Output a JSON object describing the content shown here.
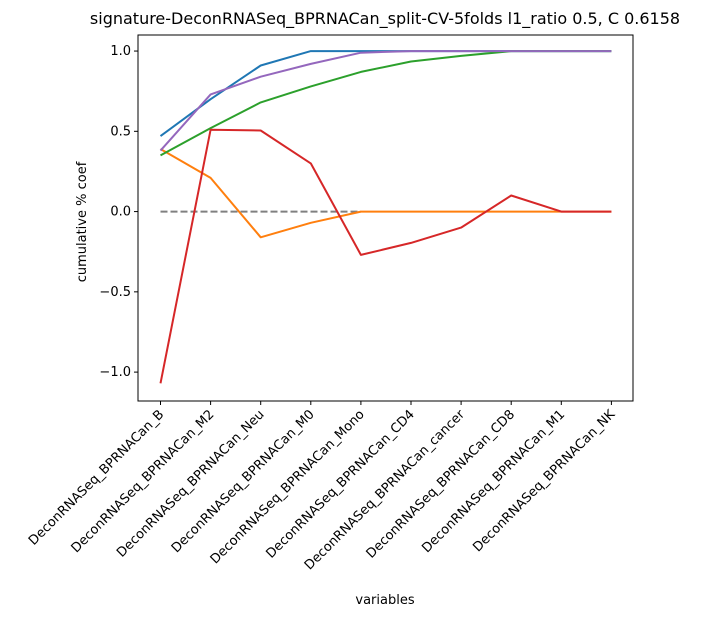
{
  "chart_data": {
    "type": "line",
    "title": "signature-DeconRNASeq_BPRNACan_split-CV-5folds l1_ratio 0.5, C 0.6158",
    "xlabel": "variables",
    "ylabel": "cumulative % coef",
    "ylim": [
      -1.18,
      1.1
    ],
    "yticks": [
      {
        "value": 1.0,
        "label": "1.0"
      },
      {
        "value": 0.5,
        "label": "0.5"
      },
      {
        "value": 0.0,
        "label": "0.0"
      },
      {
        "value": -0.5,
        "label": "−0.5"
      },
      {
        "value": -1.0,
        "label": "−1.0"
      }
    ],
    "categories": [
      "DeconRNASeq_BPRNACan_B",
      "DeconRNASeq_BPRNACan_M2",
      "DeconRNASeq_BPRNACan_Neu",
      "DeconRNASeq_BPRNACan_M0",
      "DeconRNASeq_BPRNACan_Mono",
      "DeconRNASeq_BPRNACan_CD4",
      "DeconRNASeq_BPRNACan_cancer",
      "DeconRNASeq_BPRNACan_CD8",
      "DeconRNASeq_BPRNACan_M1",
      "DeconRNASeq_BPRNACan_NK"
    ],
    "series": [
      {
        "color": "#1f77b4",
        "values": [
          0.47,
          0.7,
          0.91,
          1.0,
          1.0,
          1.0,
          1.0,
          1.0,
          1.0,
          1.0
        ]
      },
      {
        "color": "#ff7f0e",
        "values": [
          0.39,
          0.21,
          -0.16,
          -0.07,
          0.0,
          0.0,
          0.0,
          0.0,
          0.0,
          0.0
        ]
      },
      {
        "color": "#2ca02c",
        "values": [
          0.35,
          0.52,
          0.68,
          0.78,
          0.87,
          0.935,
          0.97,
          1.0,
          1.0,
          1.0
        ]
      },
      {
        "color": "#d62728",
        "values": [
          -1.07,
          0.51,
          0.505,
          0.3,
          -0.27,
          -0.195,
          -0.1,
          0.1,
          0.0,
          0.0
        ]
      },
      {
        "color": "#9467bd",
        "values": [
          0.38,
          0.73,
          0.84,
          0.92,
          0.99,
          1.0,
          1.0,
          1.0,
          1.0,
          1.0
        ]
      }
    ],
    "reference_line": {
      "y": 0.0,
      "x_from_index": 0,
      "x_to_index": 4,
      "style": "dashed",
      "color": "#808080"
    },
    "grid": false,
    "legend": "none"
  }
}
